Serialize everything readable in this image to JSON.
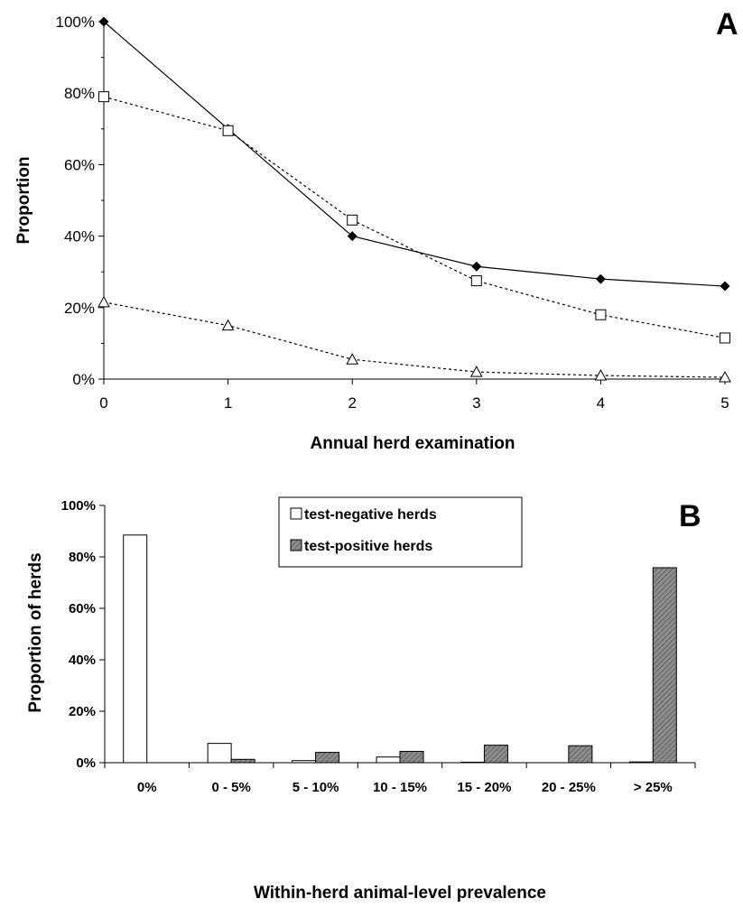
{
  "chart_data": [
    {
      "panel": "A",
      "type": "line",
      "xlabel": "Annual herd examination",
      "ylabel": "Proportion",
      "x": [
        0,
        1,
        2,
        3,
        4,
        5
      ],
      "xlim": [
        0,
        5
      ],
      "ylim": [
        0,
        100
      ],
      "yticks": [
        "0%",
        "20%",
        "40%",
        "60%",
        "80%",
        "100%"
      ],
      "series": [
        {
          "marker": "filled-diamond",
          "line": "solid",
          "values": [
            100,
            70,
            40,
            31.5,
            28,
            26
          ]
        },
        {
          "marker": "open-square",
          "line": "dotted",
          "values": [
            79,
            69.5,
            44.5,
            27.5,
            18,
            11.5
          ]
        },
        {
          "marker": "open-triangle",
          "line": "dotted",
          "values": [
            21.5,
            15,
            5.5,
            2,
            1,
            0.5
          ]
        }
      ]
    },
    {
      "panel": "B",
      "type": "bar",
      "xlabel": "Within-herd animal-level prevalence",
      "ylabel": "Proportion of herds",
      "categories": [
        "0%",
        "0 - 5%",
        "5 - 10%",
        "10 - 15%",
        "15 - 20%",
        "20 - 25%",
        "> 25%"
      ],
      "ylim": [
        0,
        100
      ],
      "yticks": [
        "0%",
        "20%",
        "40%",
        "60%",
        "80%",
        "100%"
      ],
      "legend_position": "top-center",
      "series": [
        {
          "name": "test-negative herds",
          "color": "#ffffff",
          "values": [
            88.5,
            7.5,
            0.8,
            2.2,
            0.2,
            0,
            0.3
          ]
        },
        {
          "name": "test-positive herds",
          "color": "#8c8c8c",
          "values": [
            0,
            1.3,
            4,
            4.4,
            6.8,
            6.6,
            75.8
          ]
        }
      ]
    }
  ]
}
